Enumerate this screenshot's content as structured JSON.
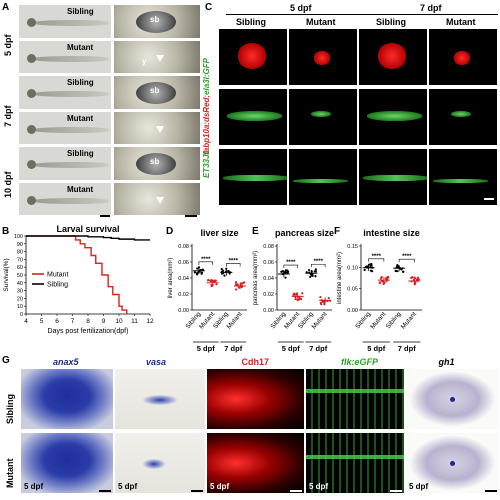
{
  "panelA": {
    "letter": "A",
    "stages": [
      "5 dpf",
      "7 dpf",
      "10 dpf"
    ],
    "rows": [
      "Sibling",
      "Mutant"
    ],
    "labels": {
      "sb": "sb",
      "y": "y"
    }
  },
  "panelB": {
    "letter": "B",
    "title": "Larval survival",
    "ylabel": "Survival(%)",
    "xlabel": "Days post fertilization(dpf)",
    "legend": [
      "Mutant",
      "Sibling"
    ],
    "colors": {
      "mutant": "#e0201b",
      "sibling": "#000000"
    }
  },
  "panelC": {
    "letter": "C",
    "stages": [
      "5 dpf",
      "7 dpf"
    ],
    "cols": [
      "Sibling",
      "Mutant",
      "Sibling",
      "Mutant"
    ],
    "row_label_1": "fabp10a:dsRed;",
    "row_label_2": "ela3l:GFP",
    "row_label_3": "ET33J1"
  },
  "panelD": {
    "letter": "D",
    "title": "liver size",
    "ylabel": "liver area(mm²)",
    "sig": "****"
  },
  "panelE": {
    "letter": "E",
    "title": "pancreas size",
    "ylabel": "pancreas area(mm²)",
    "sig": "****"
  },
  "panelF": {
    "letter": "F",
    "title": "intestine size",
    "ylabel": "intestine area(mm²)",
    "sig": "****"
  },
  "groupLabels": {
    "sib": "Sibling",
    "mut": "Mutant",
    "d5": "5 dpf",
    "d7": "7 dpf"
  },
  "panelG": {
    "letter": "G",
    "cols": [
      "anax5",
      "vasa",
      "Cdh17",
      "flk:eGFP",
      "gh1"
    ],
    "rows": [
      "Sibling",
      "Mutant"
    ],
    "stage": "5 dpf"
  },
  "chart_data": [
    {
      "type": "line",
      "title": "Larval survival",
      "xlabel": "Days post fertilization(dpf)",
      "ylabel": "Survival(%)",
      "xlim": [
        4,
        12
      ],
      "ylim": [
        0,
        100
      ],
      "xticks": [
        4,
        5,
        6,
        7,
        8,
        9,
        10,
        11,
        12
      ],
      "yticks": [
        0,
        10,
        20,
        30,
        40,
        50,
        60,
        70,
        80,
        90,
        100
      ],
      "series": [
        {
          "name": "Mutant",
          "x": [
            4,
            6.9,
            7.2,
            7.5,
            7.8,
            8.2,
            8.5,
            8.9,
            9.3,
            9.6,
            10.0,
            10.2,
            10.5
          ],
          "y": [
            100,
            100,
            95,
            90,
            85,
            75,
            65,
            50,
            35,
            25,
            10,
            5,
            0
          ]
        },
        {
          "name": "Sibling",
          "x": [
            4,
            7,
            8,
            9,
            9.5,
            10,
            11,
            12
          ],
          "y": [
            100,
            100,
            99,
            98,
            97,
            96,
            95,
            95
          ]
        }
      ]
    },
    {
      "type": "scatter",
      "title": "liver size",
      "ylabel": "liver area(mm²)",
      "ylim": [
        0,
        0.08
      ],
      "yticks": [
        0.0,
        0.02,
        0.04,
        0.06,
        0.08
      ],
      "groups": [
        "Sibling 5 dpf",
        "Mutant 5 dpf",
        "Sibling 7 dpf",
        "Mutant 7 dpf"
      ],
      "means": [
        0.049,
        0.034,
        0.047,
        0.03
      ]
    },
    {
      "type": "scatter",
      "title": "pancreas size",
      "ylabel": "pancreas area(mm²)",
      "ylim": [
        0,
        0.08
      ],
      "yticks": [
        0.0,
        0.02,
        0.04,
        0.06,
        0.08
      ],
      "groups": [
        "Sibling 5 dpf",
        "Mutant 5 dpf",
        "Sibling 7 dpf",
        "Mutant 7 dpf"
      ],
      "means": [
        0.045,
        0.017,
        0.046,
        0.012
      ]
    },
    {
      "type": "scatter",
      "title": "intestine size",
      "ylabel": "intestine area(mm²)",
      "ylim": [
        0,
        0.15
      ],
      "yticks": [
        0.0,
        0.05,
        0.1,
        0.15
      ],
      "groups": [
        "Sibling 5 dpf",
        "Mutant 5 dpf",
        "Sibling 7 dpf",
        "Mutant 7 dpf"
      ],
      "means": [
        0.099,
        0.07,
        0.098,
        0.068
      ]
    }
  ]
}
